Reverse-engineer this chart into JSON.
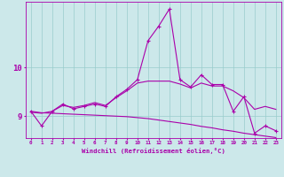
{
  "xlabel": "Windchill (Refroidissement éolien,°C)",
  "bg_color": "#cce8ea",
  "line_color": "#aa00aa",
  "grid_color": "#99cccc",
  "x_ticks": [
    0,
    1,
    2,
    3,
    4,
    5,
    6,
    7,
    8,
    9,
    10,
    11,
    12,
    13,
    14,
    15,
    16,
    17,
    18,
    19,
    20,
    21,
    22,
    23
  ],
  "y_ticks": [
    9,
    10
  ],
  "ylim": [
    8.55,
    11.35
  ],
  "xlim": [
    -0.5,
    23.5
  ],
  "series_main": [
    9.1,
    8.8,
    9.1,
    9.25,
    9.15,
    9.2,
    9.25,
    9.2,
    9.4,
    9.55,
    9.75,
    10.55,
    10.85,
    11.2,
    9.75,
    9.6,
    9.85,
    9.65,
    9.65,
    9.1,
    9.4,
    8.65,
    8.8,
    8.7
  ],
  "trend_upper": [
    9.08,
    9.06,
    9.1,
    9.22,
    9.18,
    9.22,
    9.28,
    9.22,
    9.38,
    9.52,
    9.68,
    9.72,
    9.72,
    9.72,
    9.66,
    9.58,
    9.68,
    9.62,
    9.62,
    9.52,
    9.38,
    9.14,
    9.2,
    9.14
  ],
  "trend_lower": [
    9.1,
    9.07,
    9.06,
    9.05,
    9.04,
    9.03,
    9.02,
    9.01,
    9.0,
    8.99,
    8.97,
    8.95,
    8.92,
    8.89,
    8.86,
    8.83,
    8.79,
    8.76,
    8.72,
    8.69,
    8.65,
    8.62,
    8.59,
    8.56
  ]
}
